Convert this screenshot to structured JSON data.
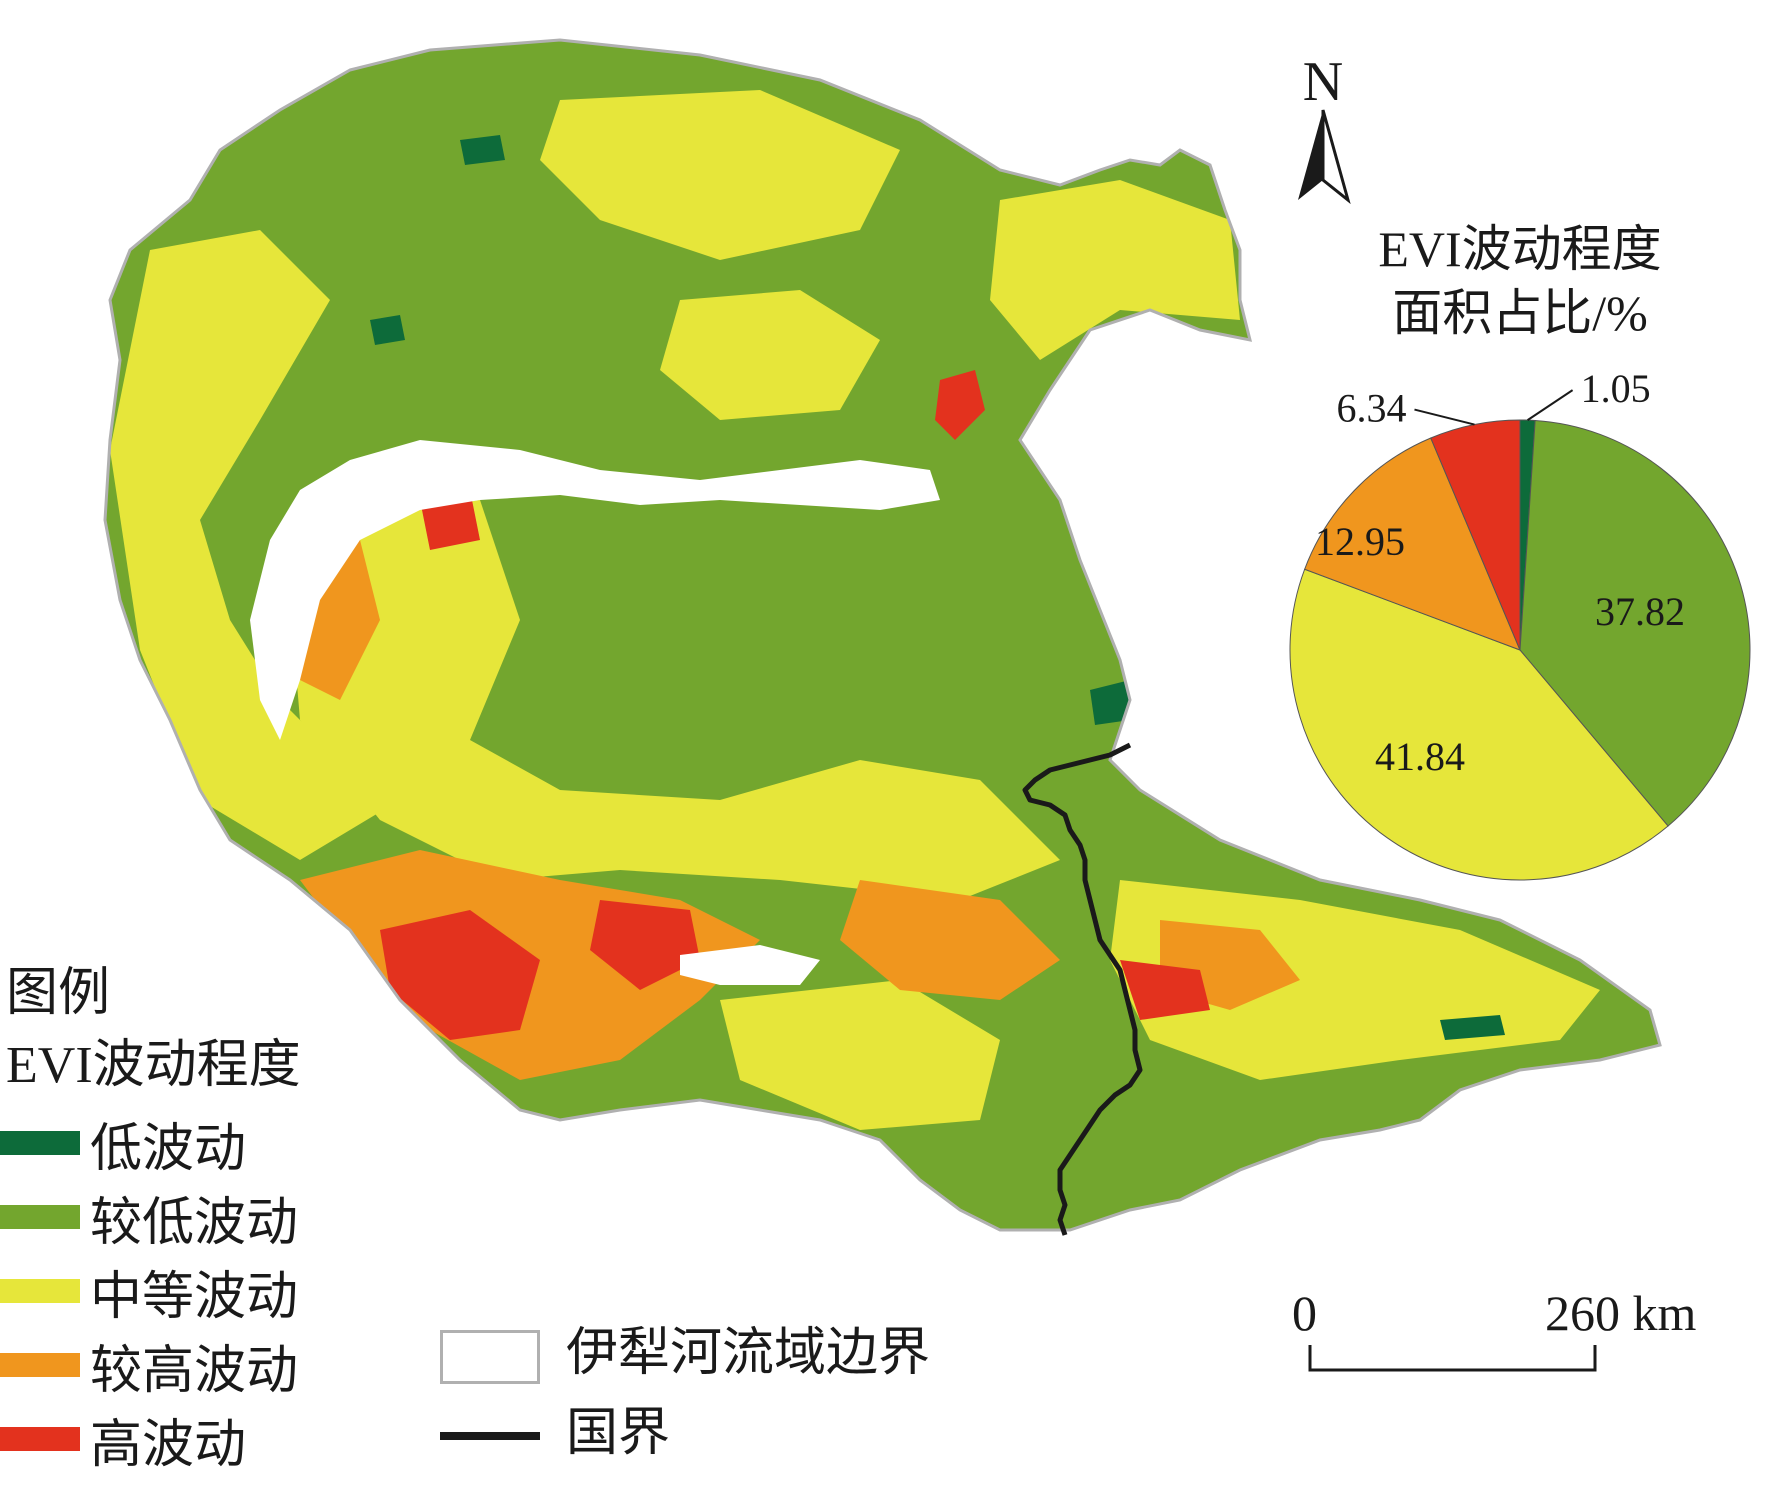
{
  "map": {
    "north_label": "N",
    "classes": [
      {
        "id": "low",
        "color": "#0d6b3a"
      },
      {
        "id": "lower",
        "color": "#73a62e"
      },
      {
        "id": "medium",
        "color": "#e6e63a"
      },
      {
        "id": "higher",
        "color": "#f0961e"
      },
      {
        "id": "high",
        "color": "#e3321e"
      }
    ],
    "border_color": "#1a1a1a",
    "boundary_color": "#b0b0b0"
  },
  "legend": {
    "title_line1": "图例",
    "title_line2": "EVI波动程度",
    "items": [
      {
        "label": "低波动",
        "color": "#0d6b3a"
      },
      {
        "label": "较低波动",
        "color": "#73a62e"
      },
      {
        "label": "中等波动",
        "color": "#e6e63a"
      },
      {
        "label": "较高波动",
        "color": "#f0961e"
      },
      {
        "label": "高波动",
        "color": "#e3321e"
      }
    ],
    "boundary_label": "伊犁河流域边界",
    "border_label": "国界"
  },
  "scale_bar": {
    "start_label": "0",
    "end_label": "260 km"
  },
  "chart_data": {
    "type": "pie",
    "title_line1": "EVI波动程度",
    "title_line2": "面积占比/%",
    "slices": [
      {
        "label": "1.05",
        "value": 1.05,
        "color": "#0d6b3a"
      },
      {
        "label": "37.82",
        "value": 37.82,
        "color": "#73a62e"
      },
      {
        "label": "41.84",
        "value": 41.84,
        "color": "#e6e63a"
      },
      {
        "label": "12.95",
        "value": 12.95,
        "color": "#f0961e"
      },
      {
        "label": "6.34",
        "value": 6.34,
        "color": "#e3321e"
      }
    ]
  }
}
